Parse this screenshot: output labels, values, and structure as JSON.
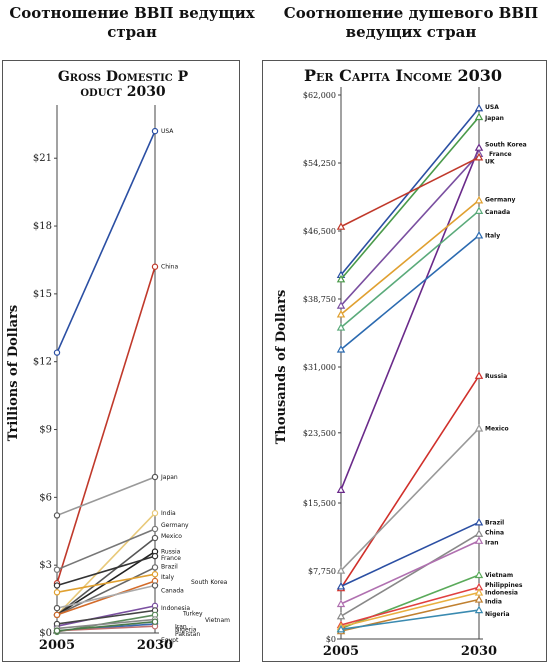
{
  "headings": {
    "left": "Соотношение ВВП ведущих стран",
    "right": "Соотношение душевого ВВП ведущих стран"
  },
  "chart_data": [
    {
      "type": "line",
      "title": "Gross Domestic Product 2030",
      "ylabel": "Trillions of Dollars",
      "xlabel": "",
      "x": [
        "2005",
        "2030"
      ],
      "ylim": [
        0,
        23
      ],
      "yticks": [
        0,
        3,
        6,
        9,
        12,
        15,
        18,
        21
      ],
      "ytick_labels": [
        "$0",
        "$3",
        "$6",
        "$9",
        "$12",
        "$15",
        "$18",
        "$21"
      ],
      "grid": false,
      "series": [
        {
          "name": "USA",
          "values": [
            12.4,
            22.2
          ],
          "color": "#2b4fa3"
        },
        {
          "name": "China",
          "values": [
            2.2,
            16.2
          ],
          "color": "#c0392b"
        },
        {
          "name": "Japan",
          "values": [
            5.2,
            6.9
          ],
          "color": "#999999"
        },
        {
          "name": "India",
          "values": [
            0.8,
            5.3
          ],
          "color": "#e8c97a"
        },
        {
          "name": "Germany",
          "values": [
            2.8,
            4.6
          ],
          "color": "#777777"
        },
        {
          "name": "Mexico",
          "values": [
            0.8,
            4.2
          ],
          "color": "#555555"
        },
        {
          "name": "Russia",
          "values": [
            0.8,
            3.6
          ],
          "color": "#222222"
        },
        {
          "name": "France",
          "values": [
            2.1,
            3.4
          ],
          "color": "#333333"
        },
        {
          "name": "Brazil",
          "values": [
            0.8,
            2.9
          ],
          "color": "#666666"
        },
        {
          "name": "Italy",
          "values": [
            1.8,
            2.6
          ],
          "color": "#e0a030"
        },
        {
          "name": "South Korea",
          "values": [
            0.8,
            2.3
          ],
          "color": "#d36b2a"
        },
        {
          "name": "Canada",
          "values": [
            1.1,
            2.1
          ],
          "color": "#aaaaaa"
        },
        {
          "name": "Indonesia",
          "values": [
            0.3,
            1.2
          ],
          "color": "#7a4fa0"
        },
        {
          "name": "Turkey",
          "values": [
            0.4,
            1.0
          ],
          "color": "#444444"
        },
        {
          "name": "Vietnam",
          "values": [
            0.05,
            0.8
          ],
          "color": "#5a8a5a"
        },
        {
          "name": "Iran",
          "values": [
            0.2,
            0.6
          ],
          "color": "#888888"
        },
        {
          "name": "Pakistan",
          "values": [
            0.1,
            0.4
          ],
          "color": "#3a6ab0"
        },
        {
          "name": "Egypt",
          "values": [
            0.1,
            0.3
          ],
          "color": "#c07070"
        },
        {
          "name": "Nigeria",
          "values": [
            0.1,
            0.5
          ],
          "color": "#4a7a4a"
        }
      ]
    },
    {
      "type": "line",
      "title": "Per Capita Income 2030",
      "ylabel": "Thousands of Dollars",
      "xlabel": "",
      "x": [
        "2005",
        "2030"
      ],
      "ylim": [
        0,
        62000
      ],
      "yticks": [
        0,
        7750,
        15500,
        23500,
        31000,
        38750,
        46500,
        54250,
        62000
      ],
      "ytick_labels": [
        "$0",
        "$7,750",
        "$15,500",
        "$23,500",
        "$31,000",
        "$38,750",
        "$46,500",
        "$54,250",
        "$62,000"
      ],
      "grid": false,
      "series": [
        {
          "name": "USA",
          "values": [
            41500,
            60500
          ],
          "color": "#2b4fa3"
        },
        {
          "name": "Japan",
          "values": [
            41000,
            59500
          ],
          "color": "#4a9a4a"
        },
        {
          "name": "South Korea",
          "values": [
            17000,
            56000
          ],
          "color": "#6a2a8a"
        },
        {
          "name": "France",
          "values": [
            38000,
            55300
          ],
          "color": "#7a4fa0"
        },
        {
          "name": "UK",
          "values": [
            47000,
            54900
          ],
          "color": "#c0392b"
        },
        {
          "name": "Germany",
          "values": [
            37000,
            50000
          ],
          "color": "#e0a030"
        },
        {
          "name": "Canada",
          "values": [
            35500,
            48800
          ],
          "color": "#5aaa7a"
        },
        {
          "name": "Italy",
          "values": [
            33000,
            46000
          ],
          "color": "#2b6ab0"
        },
        {
          "name": "Russia",
          "values": [
            5800,
            30000
          ],
          "color": "#d0302b"
        },
        {
          "name": "Mexico",
          "values": [
            7800,
            24000
          ],
          "color": "#999999"
        },
        {
          "name": "Brazil",
          "values": [
            6000,
            13300
          ],
          "color": "#2b4fa3"
        },
        {
          "name": "China",
          "values": [
            2600,
            12000
          ],
          "color": "#888888"
        },
        {
          "name": "Iran",
          "values": [
            4000,
            11200
          ],
          "color": "#b070b0"
        },
        {
          "name": "Vietnam",
          "values": [
            1200,
            7300
          ],
          "color": "#5aaa5a"
        },
        {
          "name": "Philippines",
          "values": [
            1600,
            5900
          ],
          "color": "#e04040"
        },
        {
          "name": "Indonesia",
          "values": [
            1400,
            5300
          ],
          "color": "#e8b040"
        },
        {
          "name": "India",
          "values": [
            900,
            4500
          ],
          "color": "#c08030"
        },
        {
          "name": "Nigeria",
          "values": [
            1100,
            3300
          ],
          "color": "#3a8ab0"
        }
      ]
    }
  ]
}
